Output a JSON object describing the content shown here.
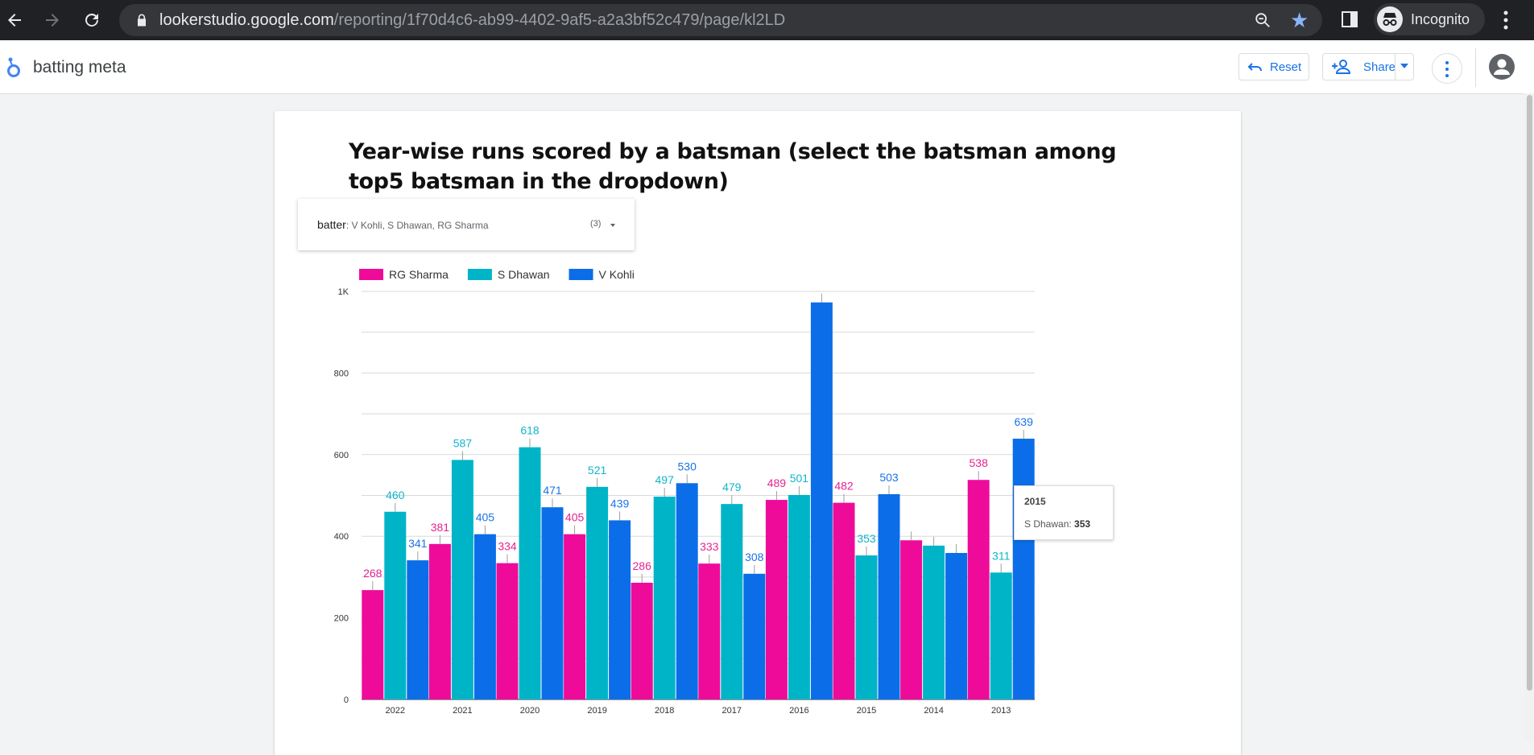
{
  "browser": {
    "url_host": "lookerstudio.google.com",
    "url_path": "/reporting/1f70d4c6-ab99-4402-9af5-a2a3bf52c479/page/kl2LD",
    "profile_label": "Incognito",
    "icons": [
      "back-arrow-icon",
      "forward-arrow-icon",
      "reload-icon",
      "lock-icon",
      "zoom-icon",
      "star-icon",
      "side-panel-icon",
      "incognito-icon",
      "kebab-menu-icon"
    ]
  },
  "app": {
    "report_title": "batting meta",
    "reset_label": "Reset",
    "share_label": "Share",
    "accent": "#1a73e8"
  },
  "filter": {
    "label": "batter",
    "value": ": V Kohli, S Dhawan, RG Sharma",
    "count": "(3)"
  },
  "tooltip": {
    "title": "2015",
    "series": "S Dhawan",
    "value": "353"
  },
  "chart_data": {
    "type": "bar",
    "title": "Year-wise runs scored by a batsman (select the batsman among top5 batsman in the dropdown)",
    "xlabel": "",
    "ylabel": "",
    "ylim": [
      0,
      1000
    ],
    "yticks": [
      0,
      200,
      400,
      600,
      800,
      1000
    ],
    "ytick_labels": [
      "0",
      "200",
      "400",
      "600",
      "800",
      "1K"
    ],
    "grid": true,
    "legend_position": "top-left",
    "categories": [
      "2022",
      "2021",
      "2020",
      "2019",
      "2018",
      "2017",
      "2016",
      "2015",
      "2014",
      "2013"
    ],
    "series": [
      {
        "name": "RG Sharma",
        "color": "#ee0b9a",
        "label_color": "#e5228f",
        "values": [
          268,
          381,
          334,
          405,
          286,
          333,
          489,
          482,
          390,
          538
        ],
        "labels": [
          "268",
          "381",
          "334",
          "405",
          "286",
          "333",
          "489",
          "482",
          "",
          "538"
        ]
      },
      {
        "name": "S Dhawan",
        "color": "#00b4c8",
        "label_color": "#12b5cb",
        "values": [
          460,
          587,
          618,
          521,
          497,
          479,
          501,
          353,
          377,
          311
        ],
        "labels": [
          "460",
          "587",
          "618",
          "521",
          "497",
          "479",
          "501",
          "353",
          "",
          "311"
        ]
      },
      {
        "name": "V Kohli",
        "color": "#0b6ee8",
        "label_color": "#1a73e8",
        "values": [
          341,
          405,
          471,
          439,
          530,
          308,
          973,
          503,
          359,
          639
        ],
        "labels": [
          "341",
          "405",
          "471",
          "439",
          "530",
          "308",
          "",
          "503",
          "",
          "639"
        ]
      }
    ]
  }
}
